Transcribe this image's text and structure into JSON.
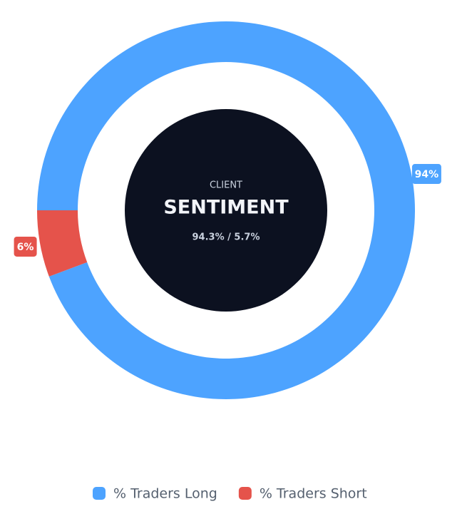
{
  "chart_data": {
    "type": "doughnut",
    "center_label": "CLIENT",
    "center_title": "SENTIMENT",
    "center_subtitle": "94.3% / 5.7%",
    "series": [
      {
        "name": "% Traders Long",
        "color": "#4da3ff",
        "values": [
          94.3
        ],
        "value_labels": [
          "94%"
        ]
      },
      {
        "name": "% Traders Short",
        "color": "#e5534b",
        "values": [
          5.7
        ],
        "value_labels": [
          "6%"
        ]
      }
    ]
  }
}
